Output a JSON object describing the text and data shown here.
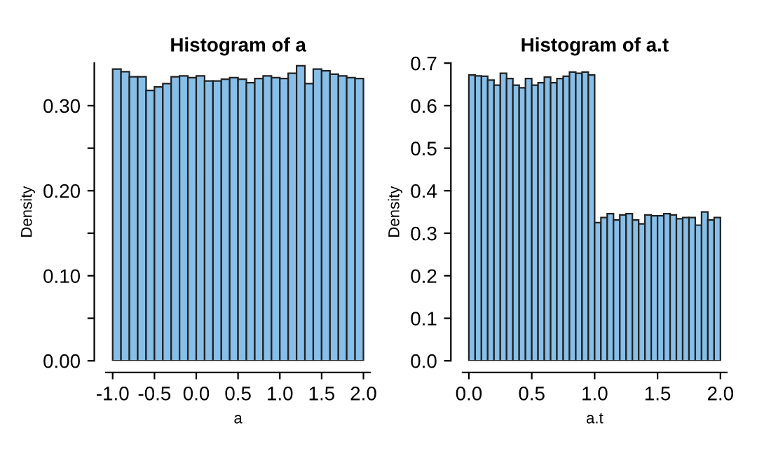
{
  "chart_data": [
    {
      "type": "histogram",
      "title": "Histogram of a",
      "xlabel": "a",
      "ylabel": "Density",
      "color": "#87bfe8",
      "bins": [
        -1.0,
        -0.9,
        -0.8,
        -0.7,
        -0.6,
        -0.5,
        -0.4,
        -0.3,
        -0.2,
        -0.1,
        0.0,
        0.1,
        0.2,
        0.3,
        0.4,
        0.5,
        0.6,
        0.7,
        0.8,
        0.9,
        1.0,
        1.1,
        1.2,
        1.3,
        1.4,
        1.5,
        1.6,
        1.7,
        1.8,
        1.9,
        2.0
      ],
      "values": [
        0.343,
        0.34,
        0.334,
        0.334,
        0.318,
        0.322,
        0.326,
        0.334,
        0.335,
        0.333,
        0.335,
        0.329,
        0.329,
        0.331,
        0.333,
        0.331,
        0.327,
        0.332,
        0.335,
        0.333,
        0.332,
        0.338,
        0.347,
        0.326,
        0.343,
        0.341,
        0.337,
        0.335,
        0.333,
        0.332
      ],
      "xlim": [
        -1.08,
        2.08
      ],
      "ylim": [
        0,
        0.35
      ],
      "xticks": [
        {
          "value": -1.0,
          "label": "-1.0"
        },
        {
          "value": -0.5,
          "label": "-0.5"
        },
        {
          "value": 0.0,
          "label": "0.0"
        },
        {
          "value": 0.5,
          "label": "0.5"
        },
        {
          "value": 1.0,
          "label": "1.0"
        },
        {
          "value": 1.5,
          "label": "1.5"
        },
        {
          "value": 2.0,
          "label": "2.0"
        }
      ],
      "yticks": [
        {
          "value": 0,
          "label": "0.00"
        },
        {
          "value": 0.05,
          "label": null
        },
        {
          "value": 0.1,
          "label": "0.10"
        },
        {
          "value": 0.15,
          "label": null
        },
        {
          "value": 0.2,
          "label": "0.20"
        },
        {
          "value": 0.25,
          "label": null
        },
        {
          "value": 0.3,
          "label": "0.30"
        }
      ],
      "grid": false,
      "legend": false
    },
    {
      "type": "histogram",
      "title": "Histogram of a.t",
      "xlabel": "a.t",
      "ylabel": "Density",
      "color": "#87bfe8",
      "bins": [
        0.0,
        0.05,
        0.1,
        0.15,
        0.2,
        0.25,
        0.3,
        0.35,
        0.4,
        0.45,
        0.5,
        0.55,
        0.6,
        0.65,
        0.7,
        0.75,
        0.8,
        0.85,
        0.9,
        0.95,
        1.0,
        1.05,
        1.1,
        1.15,
        1.2,
        1.25,
        1.3,
        1.35,
        1.4,
        1.45,
        1.5,
        1.55,
        1.6,
        1.65,
        1.7,
        1.75,
        1.8,
        1.85,
        1.9,
        1.95,
        2.0
      ],
      "values": [
        0.672,
        0.67,
        0.669,
        0.66,
        0.648,
        0.676,
        0.664,
        0.648,
        0.642,
        0.664,
        0.648,
        0.654,
        0.667,
        0.654,
        0.664,
        0.669,
        0.679,
        0.676,
        0.679,
        0.672,
        0.325,
        0.337,
        0.346,
        0.331,
        0.343,
        0.346,
        0.331,
        0.322,
        0.343,
        0.341,
        0.341,
        0.346,
        0.343,
        0.334,
        0.337,
        0.337,
        0.319,
        0.35,
        0.331,
        0.337
      ],
      "xlim": [
        -0.05,
        2.05
      ],
      "ylim": [
        0,
        0.7
      ],
      "xticks": [
        {
          "value": 0.0,
          "label": "0.0"
        },
        {
          "value": 0.5,
          "label": "0.5"
        },
        {
          "value": 1.0,
          "label": "1.0"
        },
        {
          "value": 1.5,
          "label": "1.5"
        },
        {
          "value": 2.0,
          "label": "2.0"
        }
      ],
      "yticks": [
        {
          "value": 0,
          "label": "0.0"
        },
        {
          "value": 0.1,
          "label": "0.1"
        },
        {
          "value": 0.2,
          "label": "0.2"
        },
        {
          "value": 0.3,
          "label": "0.3"
        },
        {
          "value": 0.4,
          "label": "0.4"
        },
        {
          "value": 0.5,
          "label": "0.5"
        },
        {
          "value": 0.6,
          "label": "0.6"
        },
        {
          "value": 0.7,
          "label": "0.7"
        }
      ],
      "grid": false,
      "legend": false
    }
  ]
}
